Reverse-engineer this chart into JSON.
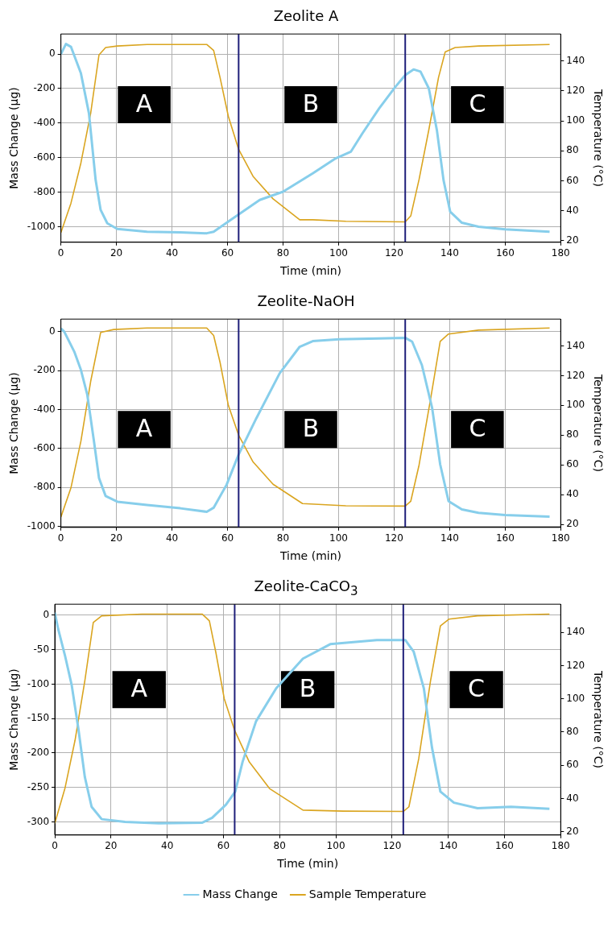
{
  "chart_data": [
    {
      "type": "line",
      "title": "Zeolite A",
      "xlabel": "Time (min)",
      "ylabel": "Mass Change (µg)",
      "y2label": "Temperature (°C)",
      "xlim": [
        0,
        180
      ],
      "xticks": [
        0,
        20,
        40,
        60,
        80,
        100,
        120,
        140,
        160,
        180
      ],
      "ylim": [
        -1090,
        116
      ],
      "yticks": [
        -1000,
        -800,
        -600,
        -400,
        -200,
        0
      ],
      "y2lim": [
        19,
        158
      ],
      "y2ticks": [
        20,
        40,
        60,
        80,
        100,
        120,
        140
      ],
      "grid": true,
      "legend": false,
      "marker": "none",
      "ref_lines": [
        {
          "axis": "x",
          "value": 64,
          "color": "#1f1f7a"
        },
        {
          "axis": "x",
          "value": 124,
          "color": "#1f1f7a"
        }
      ],
      "annotations": [
        "A",
        "B",
        "C"
      ],
      "series": [
        {
          "color": "#87ceeb",
          "x": [
            0,
            1.8,
            3.6,
            7.2,
            10.1,
            12.5,
            14.3,
            16.7,
            20.3,
            31,
            43,
            52.5,
            55,
            62,
            71.6,
            80,
            90.7,
            99,
            104.4,
            108.6,
            114.6,
            120.5,
            124,
            127,
            129.5,
            132.5,
            135.4,
            137.8,
            140.2,
            144.4,
            150.4,
            160,
            176
          ],
          "values": [
            0,
            58,
            42,
            -112,
            -344,
            -730,
            -903,
            -980,
            -1013,
            -1029,
            -1033,
            -1038,
            -1029,
            -951,
            -845,
            -797,
            -691,
            -604,
            -566,
            -459,
            -315,
            -189,
            -122,
            -89,
            -102,
            -199,
            -440,
            -730,
            -913,
            -977,
            -1000,
            -1015,
            -1029
          ]
        },
        {
          "color": "#daa520",
          "axis": "y2",
          "x": [
            0,
            3.6,
            7.2,
            10.7,
            13.7,
            16.1,
            20.3,
            31,
            52.5,
            55,
            57.3,
            60.3,
            64,
            69.2,
            76.4,
            86,
            90.7,
            102.6,
            124,
            126,
            129,
            132.5,
            136,
            138.4,
            142,
            150.4,
            176
          ],
          "values": [
            25.5,
            45,
            72,
            105,
            144,
            149,
            150,
            151,
            151,
            147,
            129,
            103,
            81,
            63,
            48,
            34,
            34,
            33,
            32.6,
            36.6,
            61,
            94,
            129,
            146,
            149,
            150,
            151
          ]
        }
      ]
    },
    {
      "type": "line",
      "title": "Zeolite-NaOH",
      "xlabel": "Time (min)",
      "ylabel": "Mass Change (µg)",
      "y2label": "Temperature (°C)",
      "xlim": [
        0,
        180
      ],
      "xticks": [
        0,
        20,
        40,
        60,
        80,
        100,
        120,
        140,
        160,
        180
      ],
      "ylim": [
        -1005,
        65
      ],
      "yticks": [
        -1000,
        -800,
        -600,
        -400,
        -200,
        0
      ],
      "y2lim": [
        18,
        158
      ],
      "y2ticks": [
        20,
        40,
        60,
        80,
        100,
        120,
        140
      ],
      "grid": true,
      "legend": false,
      "marker": "none",
      "ref_lines": [
        {
          "axis": "x",
          "value": 64,
          "color": "#1f1f7a"
        },
        {
          "axis": "x",
          "value": 124,
          "color": "#1f1f7a"
        }
      ],
      "annotations": [
        "A",
        "B",
        "C"
      ],
      "series": [
        {
          "color": "#87ceeb",
          "x": [
            0,
            1.2,
            4.8,
            7.2,
            9.5,
            11.9,
            13.7,
            16.1,
            20.3,
            31,
            43,
            52.5,
            55,
            59.7,
            64,
            70.4,
            78.8,
            86,
            90.7,
            100.2,
            114.6,
            124,
            126.5,
            130,
            133.7,
            136.6,
            139.6,
            144.4,
            150.4,
            160,
            176
          ],
          "values": [
            17,
            0,
            -102,
            -196,
            -324,
            -563,
            -751,
            -844,
            -873,
            -890,
            -907,
            -925,
            -904,
            -785,
            -631,
            -444,
            -213,
            -77,
            -48,
            -39,
            -34,
            -31,
            -51,
            -171,
            -392,
            -682,
            -870,
            -913,
            -930,
            -942,
            -950
          ]
        },
        {
          "color": "#daa520",
          "axis": "y2",
          "x": [
            0,
            3.6,
            7.2,
            10.7,
            14.3,
            19,
            31,
            52.5,
            55,
            57.3,
            60.3,
            64,
            69.2,
            76.4,
            87,
            102.6,
            124,
            126,
            129,
            133.2,
            136.6,
            139.6,
            150.4,
            176
          ],
          "values": [
            25,
            44.5,
            76,
            116,
            149,
            151,
            152,
            152,
            147,
            129,
            100,
            80,
            62,
            47,
            34,
            32.5,
            32.3,
            35.6,
            60,
            105,
            143,
            148,
            150.6,
            152
          ]
        }
      ]
    },
    {
      "type": "line",
      "title": "Zeolite-CaCO$_{3}$",
      "xlabel": "Time (min)",
      "ylabel": "Mass Change (µg)",
      "y2label": "Temperature (°C)",
      "xlim": [
        0,
        180
      ],
      "xticks": [
        0,
        20,
        40,
        60,
        80,
        100,
        120,
        140,
        160,
        180
      ],
      "ylim": [
        -319,
        16
      ],
      "yticks": [
        -300,
        -250,
        -200,
        -150,
        -100,
        -50,
        0
      ],
      "y2lim": [
        18,
        157
      ],
      "y2ticks": [
        20,
        40,
        60,
        80,
        100,
        120,
        140
      ],
      "grid": true,
      "legend": "bottom",
      "marker": "none",
      "ref_lines": [
        {
          "axis": "x",
          "value": 64,
          "color": "#1f1f7a"
        },
        {
          "axis": "x",
          "value": 124,
          "color": "#1f1f7a"
        }
      ],
      "annotations": [
        "A",
        "B",
        "C"
      ],
      "series": [
        {
          "name": "Mass Change",
          "color": "#87ceeb",
          "x": [
            0,
            1.2,
            3.6,
            6,
            8.4,
            10.7,
            13.1,
            16.7,
            25,
            37,
            52.5,
            56,
            60.9,
            64.2,
            66.8,
            71.6,
            78.8,
            88.3,
            98,
            114.6,
            124.7,
            127.7,
            131.3,
            134.2,
            137.2,
            142,
            150.4,
            162.3,
            176
          ],
          "values": [
            4,
            -20,
            -58,
            -101,
            -165,
            -235,
            -278,
            -296,
            -300,
            -302,
            -301,
            -294,
            -275,
            -256,
            -213,
            -154,
            -106,
            -63,
            -42,
            -36,
            -36,
            -53,
            -106,
            -192,
            -256,
            -272,
            -280,
            -278,
            -281
          ]
        },
        {
          "name": "Sample Temperature",
          "color": "#daa520",
          "axis": "y2",
          "x": [
            0,
            3.6,
            7.2,
            10.7,
            13.7,
            16.7,
            31,
            52.5,
            55,
            57.3,
            60.3,
            64,
            69.2,
            76.4,
            88.3,
            102.6,
            124,
            126,
            129.5,
            133.7,
            137.2,
            140.2,
            150.4,
            176
          ],
          "values": [
            25,
            46,
            75,
            111,
            146,
            150,
            151,
            151,
            147,
            128,
            100,
            81,
            62,
            46,
            33,
            32.4,
            32.2,
            35,
            64,
            111,
            144,
            148,
            150,
            151
          ]
        }
      ]
    }
  ]
}
